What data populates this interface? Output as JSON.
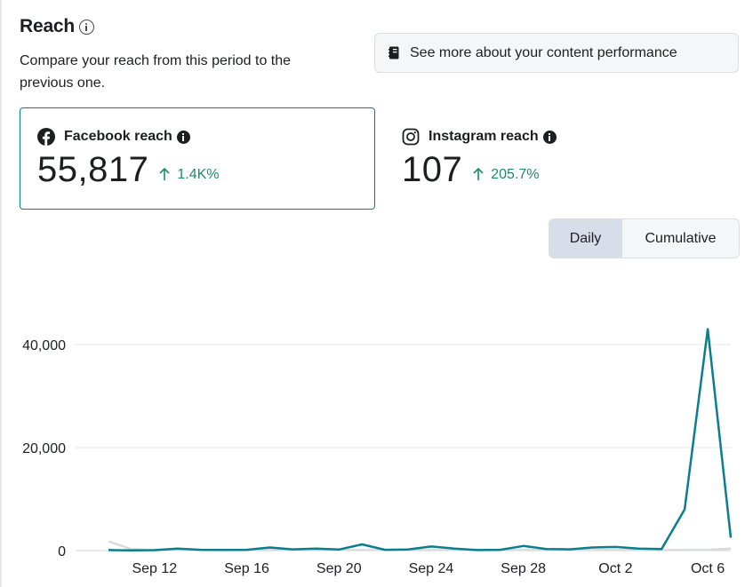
{
  "header": {
    "title": "Reach",
    "subtitle": "Compare your reach from this period to the previous one.",
    "performance_button": "See more about your content performance"
  },
  "metrics": {
    "facebook": {
      "label": "Facebook reach",
      "value": "55,817",
      "change": "1.4K%",
      "icon": "facebook-icon"
    },
    "instagram": {
      "label": "Instagram reach",
      "value": "107",
      "change": "205.7%",
      "icon": "instagram-icon"
    }
  },
  "toggle": {
    "daily": "Daily",
    "cumulative": "Cumulative",
    "selected": "Daily"
  },
  "colors": {
    "accent": "#0a7e8c",
    "positive": "#1d8a6a",
    "previous": "#d9dcdf"
  },
  "chart_data": {
    "type": "line",
    "ylim": [
      0,
      50000
    ],
    "y_ticks": [
      0,
      20000,
      40000
    ],
    "y_tick_labels": [
      "0",
      "20,000",
      "40,000"
    ],
    "x_tick_labels": [
      "Sep 12",
      "Sep 16",
      "Sep 20",
      "Sep 24",
      "Sep 28",
      "Oct 2",
      "Oct 6"
    ],
    "x_tick_index": [
      2,
      6,
      10,
      14,
      18,
      22,
      26
    ],
    "grid": true,
    "series": [
      {
        "values": [
          100,
          50,
          80,
          400,
          150,
          120,
          150,
          600,
          250,
          400,
          200,
          1200,
          150,
          200,
          800,
          400,
          100,
          150,
          900,
          300,
          250,
          600,
          700,
          400,
          300,
          8000,
          43000,
          2500
        ]
      },
      {
        "values": [
          1800,
          300,
          100,
          100,
          100,
          100,
          100,
          100,
          100,
          100,
          100,
          100,
          100,
          100,
          100,
          100,
          100,
          100,
          100,
          100,
          100,
          100,
          100,
          100,
          100,
          100,
          150,
          400
        ]
      }
    ]
  }
}
